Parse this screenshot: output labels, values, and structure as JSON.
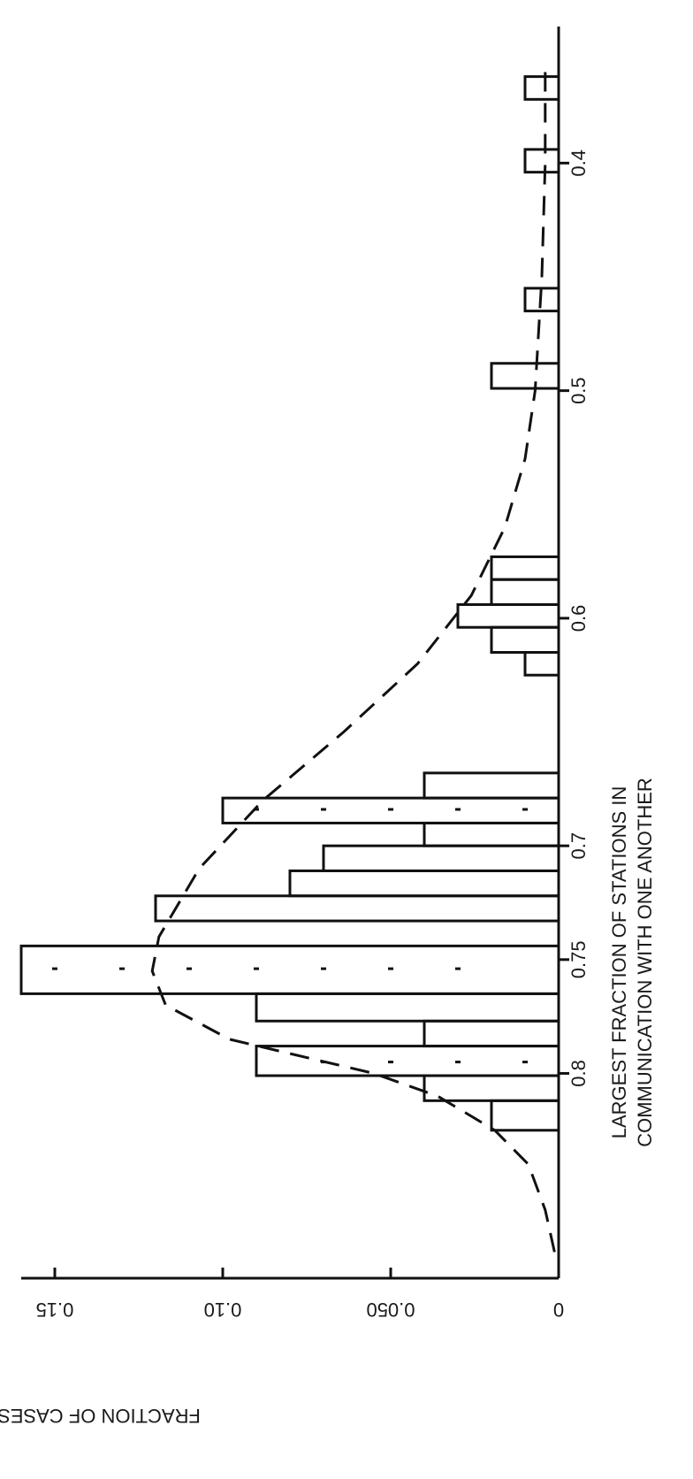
{
  "chart_data": {
    "type": "bar",
    "orientation": "rotated-90-counterclockwise",
    "xlabel_line1": "LARGEST FRACTION OF STATIONS IN",
    "xlabel_line2": "COMMUNICATION  WITH ONE ANOTHER",
    "ylabel": "FRACTION OF CASES",
    "xlim": [
      0.34,
      0.89
    ],
    "ylim": [
      0,
      0.16
    ],
    "x_ticks": [
      {
        "value": 0.4,
        "label": "0.4"
      },
      {
        "value": 0.5,
        "label": "0.5"
      },
      {
        "value": 0.6,
        "label": "0.6"
      },
      {
        "value": 0.7,
        "label": "0.7"
      },
      {
        "value": 0.75,
        "label": "0.75"
      },
      {
        "value": 0.8,
        "label": "0.8"
      }
    ],
    "y_ticks": [
      {
        "value": 0,
        "label": "0"
      },
      {
        "value": 0.05,
        "label": "0.050"
      },
      {
        "value": 0.1,
        "label": "0.10"
      },
      {
        "value": 0.15,
        "label": "0.15"
      }
    ],
    "histogram": [
      {
        "x0": 0.362,
        "x1": 0.372,
        "value": 0.01
      },
      {
        "x0": 0.394,
        "x1": 0.404,
        "value": 0.01
      },
      {
        "x0": 0.455,
        "x1": 0.465,
        "value": 0.01
      },
      {
        "x0": 0.488,
        "x1": 0.499,
        "value": 0.02
      },
      {
        "x0": 0.573,
        "x1": 0.583,
        "value": 0.02
      },
      {
        "x0": 0.583,
        "x1": 0.594,
        "value": 0.02
      },
      {
        "x0": 0.594,
        "x1": 0.604,
        "value": 0.03
      },
      {
        "x0": 0.604,
        "x1": 0.615,
        "value": 0.02
      },
      {
        "x0": 0.615,
        "x1": 0.625,
        "value": 0.01
      },
      {
        "x0": 0.668,
        "x1": 0.679,
        "value": 0.04
      },
      {
        "x0": 0.679,
        "x1": 0.69,
        "value": 0.1
      },
      {
        "x0": 0.69,
        "x1": 0.7,
        "value": 0.04
      },
      {
        "x0": 0.7,
        "x1": 0.711,
        "value": 0.07
      },
      {
        "x0": 0.711,
        "x1": 0.722,
        "value": 0.08
      },
      {
        "x0": 0.722,
        "x1": 0.733,
        "value": 0.12
      },
      {
        "x0": 0.744,
        "x1": 0.765,
        "value": 0.16
      },
      {
        "x0": 0.765,
        "x1": 0.777,
        "value": 0.09
      },
      {
        "x0": 0.777,
        "x1": 0.788,
        "value": 0.04
      },
      {
        "x0": 0.788,
        "x1": 0.801,
        "value": 0.09
      },
      {
        "x0": 0.801,
        "x1": 0.812,
        "value": 0.04
      },
      {
        "x0": 0.812,
        "x1": 0.825,
        "value": 0.02
      }
    ],
    "fit_curve": {
      "style": "dashed",
      "points": [
        [
          0.36,
          0.004
        ],
        [
          0.4,
          0.004
        ],
        [
          0.45,
          0.005
        ],
        [
          0.5,
          0.007
        ],
        [
          0.53,
          0.01
        ],
        [
          0.56,
          0.016
        ],
        [
          0.59,
          0.026
        ],
        [
          0.62,
          0.042
        ],
        [
          0.65,
          0.064
        ],
        [
          0.68,
          0.088
        ],
        [
          0.71,
          0.107
        ],
        [
          0.74,
          0.119
        ],
        [
          0.755,
          0.121
        ],
        [
          0.77,
          0.117
        ],
        [
          0.785,
          0.098
        ],
        [
          0.8,
          0.055
        ],
        [
          0.81,
          0.036
        ],
        [
          0.825,
          0.019
        ],
        [
          0.84,
          0.009
        ],
        [
          0.86,
          0.004
        ],
        [
          0.88,
          0.001
        ]
      ]
    },
    "dotted_markers": [
      {
        "x": 0.684,
        "y": [
          0.01,
          0.03,
          0.05,
          0.07,
          0.09
        ]
      },
      {
        "x": 0.754,
        "y": [
          0.03,
          0.05,
          0.07,
          0.09,
          0.11,
          0.13,
          0.15
        ]
      },
      {
        "x": 0.795,
        "y": [
          0.01,
          0.03,
          0.05,
          0.07
        ]
      }
    ],
    "grid": false,
    "legend": "none"
  }
}
